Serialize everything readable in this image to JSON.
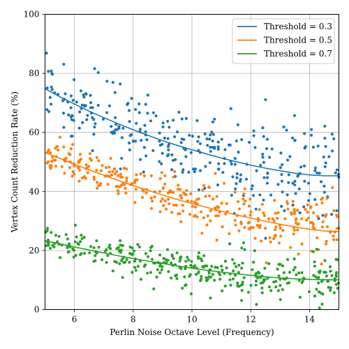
{
  "chart_data": {
    "type": "scatter",
    "xlabel": "Perlin Noise Octave Level (Frequency)",
    "ylabel": "Vertex Count Reduction Rate (%)",
    "xlim": [
      5,
      15
    ],
    "ylim": [
      0,
      100
    ],
    "x_ticks": [
      "6",
      "8",
      "10",
      "12",
      "14"
    ],
    "y_ticks": [
      "0",
      "20",
      "40",
      "60",
      "80",
      "100"
    ],
    "grid": true,
    "legend_position": "top-right",
    "series": [
      {
        "name": "Threshold = 0.3",
        "color": "#1f77b4",
        "trend": [
          {
            "x": 5.0,
            "y": 74.8
          },
          {
            "x": 5.5,
            "y": 72.1
          },
          {
            "x": 6.0,
            "y": 69.6
          },
          {
            "x": 6.5,
            "y": 67.2
          },
          {
            "x": 7.0,
            "y": 65.0
          },
          {
            "x": 7.5,
            "y": 62.9
          },
          {
            "x": 8.0,
            "y": 60.9
          },
          {
            "x": 8.5,
            "y": 59.0
          },
          {
            "x": 9.0,
            "y": 57.2
          },
          {
            "x": 9.5,
            "y": 55.6
          },
          {
            "x": 10.0,
            "y": 54.1
          },
          {
            "x": 10.5,
            "y": 52.7
          },
          {
            "x": 11.0,
            "y": 51.3
          },
          {
            "x": 11.5,
            "y": 50.1
          },
          {
            "x": 12.0,
            "y": 48.9
          },
          {
            "x": 12.5,
            "y": 47.9
          },
          {
            "x": 13.0,
            "y": 47.0
          },
          {
            "x": 13.5,
            "y": 46.2
          },
          {
            "x": 14.0,
            "y": 45.6
          },
          {
            "x": 14.5,
            "y": 45.3
          },
          {
            "x": 15.0,
            "y": 45.3
          }
        ],
        "scatter": {
          "n": 330,
          "spread_start": 5,
          "spread_end": 9,
          "seed": 11
        }
      },
      {
        "name": "Threshold = 0.5",
        "color": "#ff7f0e",
        "trend": [
          {
            "x": 5.0,
            "y": 53.2
          },
          {
            "x": 5.5,
            "y": 51.2
          },
          {
            "x": 6.0,
            "y": 49.2
          },
          {
            "x": 6.5,
            "y": 47.3
          },
          {
            "x": 7.0,
            "y": 45.5
          },
          {
            "x": 7.5,
            "y": 43.7
          },
          {
            "x": 8.0,
            "y": 42.0
          },
          {
            "x": 8.5,
            "y": 40.4
          },
          {
            "x": 9.0,
            "y": 38.8
          },
          {
            "x": 9.5,
            "y": 37.3
          },
          {
            "x": 10.0,
            "y": 35.9
          },
          {
            "x": 10.5,
            "y": 34.6
          },
          {
            "x": 11.0,
            "y": 33.3
          },
          {
            "x": 11.5,
            "y": 32.1
          },
          {
            "x": 12.0,
            "y": 31.0
          },
          {
            "x": 12.5,
            "y": 29.9
          },
          {
            "x": 13.0,
            "y": 28.9
          },
          {
            "x": 13.5,
            "y": 28.0
          },
          {
            "x": 14.0,
            "y": 27.2
          },
          {
            "x": 14.5,
            "y": 26.6
          },
          {
            "x": 15.0,
            "y": 26.4
          }
        ],
        "scatter": {
          "n": 340,
          "spread_start": 2.5,
          "spread_end": 5.5,
          "seed": 23
        }
      },
      {
        "name": "Threshold = 0.7",
        "color": "#2ca02c",
        "trend": [
          {
            "x": 5.0,
            "y": 23.3
          },
          {
            "x": 5.5,
            "y": 22.3
          },
          {
            "x": 6.0,
            "y": 21.2
          },
          {
            "x": 6.5,
            "y": 20.2
          },
          {
            "x": 7.0,
            "y": 19.2
          },
          {
            "x": 7.5,
            "y": 18.2
          },
          {
            "x": 8.0,
            "y": 17.3
          },
          {
            "x": 8.5,
            "y": 16.4
          },
          {
            "x": 9.0,
            "y": 15.6
          },
          {
            "x": 9.5,
            "y": 14.8
          },
          {
            "x": 10.0,
            "y": 14.0
          },
          {
            "x": 10.5,
            "y": 13.3
          },
          {
            "x": 11.0,
            "y": 12.7
          },
          {
            "x": 11.5,
            "y": 12.1
          },
          {
            "x": 12.0,
            "y": 11.6
          },
          {
            "x": 12.5,
            "y": 11.1
          },
          {
            "x": 13.0,
            "y": 10.7
          },
          {
            "x": 13.5,
            "y": 10.4
          },
          {
            "x": 14.0,
            "y": 10.2
          },
          {
            "x": 14.5,
            "y": 10.1
          },
          {
            "x": 15.0,
            "y": 10.1
          }
        ],
        "scatter": {
          "n": 340,
          "spread_start": 2.5,
          "spread_end": 4,
          "seed": 37
        }
      }
    ]
  }
}
